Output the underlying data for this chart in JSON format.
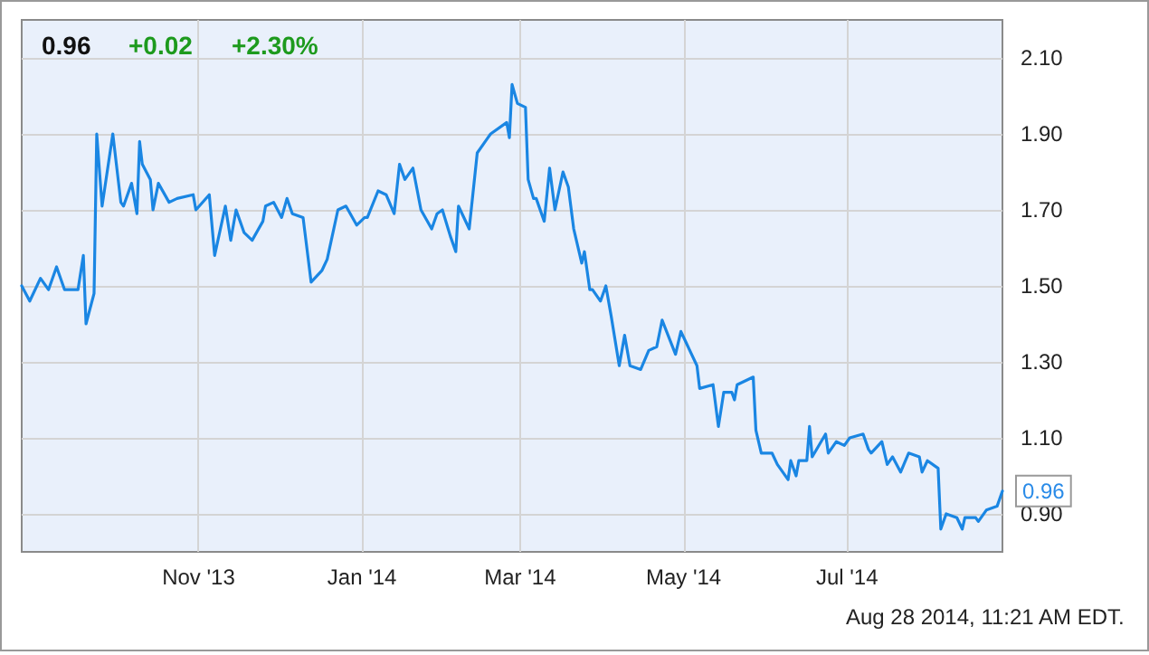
{
  "chart_data": {
    "type": "line",
    "x": [
      "2013-08-27",
      "2013-08-30",
      "2013-09-03",
      "2013-09-06",
      "2013-09-09",
      "2013-09-12",
      "2013-09-17",
      "2013-09-19",
      "2013-09-20",
      "2013-09-23",
      "2013-09-24",
      "2013-09-26",
      "2013-09-30",
      "2013-10-03",
      "2013-10-04",
      "2013-10-07",
      "2013-10-09",
      "2013-10-10",
      "2013-10-11",
      "2013-10-14",
      "2013-10-15",
      "2013-10-17",
      "2013-10-21",
      "2013-10-24",
      "2013-10-30",
      "2013-10-31",
      "2013-11-05",
      "2013-11-07",
      "2013-11-11",
      "2013-11-13",
      "2013-11-15",
      "2013-11-18",
      "2013-11-21",
      "2013-11-25",
      "2013-11-26",
      "2013-11-29",
      "2013-12-02",
      "2013-12-04",
      "2013-12-06",
      "2013-12-10",
      "2013-12-13",
      "2013-12-17",
      "2013-12-19",
      "2013-12-23",
      "2013-12-26",
      "2013-12-30",
      "2014-01-02",
      "2014-01-03",
      "2014-01-07",
      "2014-01-10",
      "2014-01-13",
      "2014-01-15",
      "2014-01-17",
      "2014-01-20",
      "2014-01-23",
      "2014-01-27",
      "2014-01-29",
      "2014-01-31",
      "2014-02-03",
      "2014-02-05",
      "2014-02-06",
      "2014-02-10",
      "2014-02-13",
      "2014-02-17",
      "2014-02-18",
      "2014-02-24",
      "2014-02-25",
      "2014-02-26",
      "2014-02-28",
      "2014-03-03",
      "2014-03-04",
      "2014-03-06",
      "2014-03-07",
      "2014-03-10",
      "2014-03-12",
      "2014-03-14",
      "2014-03-17",
      "2014-03-19",
      "2014-03-21",
      "2014-03-24",
      "2014-03-25",
      "2014-03-27",
      "2014-03-28",
      "2014-03-31",
      "2014-04-02",
      "2014-04-04",
      "2014-04-07",
      "2014-04-09",
      "2014-04-11",
      "2014-04-15",
      "2014-04-18",
      "2014-04-21",
      "2014-04-23",
      "2014-04-28",
      "2014-04-30",
      "2014-05-02",
      "2014-05-06",
      "2014-05-07",
      "2014-05-12",
      "2014-05-14",
      "2014-05-16",
      "2014-05-19",
      "2014-05-20",
      "2014-05-21",
      "2014-05-27",
      "2014-05-28",
      "2014-05-30",
      "2014-06-02",
      "2014-06-03",
      "2014-06-05",
      "2014-06-09",
      "2014-06-10",
      "2014-06-12",
      "2014-06-13",
      "2014-06-16",
      "2014-06-17",
      "2014-06-18",
      "2014-06-23",
      "2014-06-24",
      "2014-06-27",
      "2014-06-30",
      "2014-07-02",
      "2014-07-07",
      "2014-07-09",
      "2014-07-10",
      "2014-07-14",
      "2014-07-16",
      "2014-07-18",
      "2014-07-21",
      "2014-07-24",
      "2014-07-28",
      "2014-07-29",
      "2014-07-31",
      "2014-08-04",
      "2014-08-05",
      "2014-08-07",
      "2014-08-11",
      "2014-08-13",
      "2014-08-14",
      "2014-08-18",
      "2014-08-19",
      "2014-08-22",
      "2014-08-26",
      "2014-08-28"
    ],
    "series": [
      {
        "color": "#1a86e3",
        "values": [
          1.5,
          1.46,
          1.52,
          1.49,
          1.55,
          1.49,
          1.49,
          1.58,
          1.4,
          1.48,
          1.9,
          1.71,
          1.9,
          1.72,
          1.71,
          1.77,
          1.69,
          1.88,
          1.82,
          1.78,
          1.7,
          1.77,
          1.72,
          1.73,
          1.74,
          1.7,
          1.74,
          1.58,
          1.71,
          1.62,
          1.7,
          1.64,
          1.62,
          1.67,
          1.71,
          1.72,
          1.68,
          1.73,
          1.69,
          1.68,
          1.51,
          1.54,
          1.57,
          1.7,
          1.71,
          1.66,
          1.68,
          1.68,
          1.75,
          1.74,
          1.69,
          1.82,
          1.78,
          1.81,
          1.7,
          1.65,
          1.69,
          1.7,
          1.63,
          1.59,
          1.71,
          1.65,
          1.85,
          1.89,
          1.9,
          1.93,
          1.89,
          2.03,
          1.98,
          1.97,
          1.78,
          1.73,
          1.73,
          1.67,
          1.81,
          1.7,
          1.8,
          1.76,
          1.65,
          1.56,
          1.59,
          1.49,
          1.49,
          1.46,
          1.5,
          1.42,
          1.29,
          1.37,
          1.29,
          1.28,
          1.33,
          1.34,
          1.41,
          1.32,
          1.38,
          1.35,
          1.29,
          1.23,
          1.24,
          1.13,
          1.22,
          1.22,
          1.2,
          1.24,
          1.26,
          1.12,
          1.06,
          1.06,
          1.06,
          1.03,
          0.99,
          1.04,
          1.0,
          1.04,
          1.04,
          1.13,
          1.05,
          1.11,
          1.06,
          1.09,
          1.08,
          1.1,
          1.11,
          1.07,
          1.06,
          1.09,
          1.03,
          1.05,
          1.01,
          1.06,
          1.05,
          1.01,
          1.04,
          1.02,
          0.86,
          0.9,
          0.89,
          0.86,
          0.89,
          0.89,
          0.88,
          0.91,
          0.92,
          0.96
        ]
      }
    ],
    "xlim": [
      "2013-08-27",
      "2014-08-28"
    ],
    "xticks": [
      {
        "value": "2013-11-01",
        "label": "Nov '13"
      },
      {
        "value": "2014-01-01",
        "label": "Jan '14"
      },
      {
        "value": "2014-03-01",
        "label": "Mar '14"
      },
      {
        "value": "2014-05-01",
        "label": "May '14"
      },
      {
        "value": "2014-07-01",
        "label": "Jul '14"
      }
    ],
    "ylim": [
      0.8,
      2.2
    ],
    "yticks": [
      {
        "value": 0.9,
        "label": "0.90"
      },
      {
        "value": 1.1,
        "label": "1.10"
      },
      {
        "value": 1.3,
        "label": "1.30"
      },
      {
        "value": 1.5,
        "label": "1.50"
      },
      {
        "value": 1.7,
        "label": "1.70"
      },
      {
        "value": 1.9,
        "label": "1.90"
      },
      {
        "value": 2.1,
        "label": "2.10"
      }
    ],
    "grid": true,
    "marker": "none",
    "line_style": "solid",
    "annotations": [
      "0.96",
      "+0.02",
      "+2.30%",
      "Aug 28 2014, 11:21 AM EDT.",
      {
        "text": "0.96",
        "x": "2014-08-28",
        "y": 0.96
      }
    ]
  }
}
